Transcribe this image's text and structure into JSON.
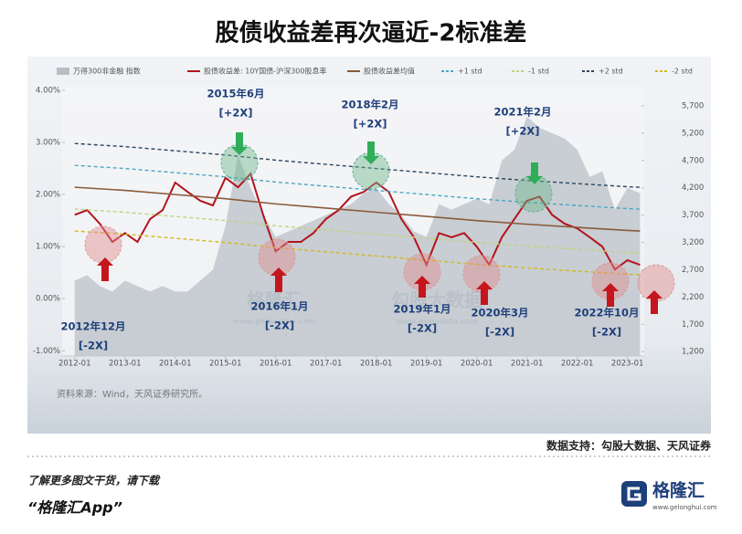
{
  "page_title": "股债收益差再次逼近-2标准差",
  "chart_data": {
    "type": "line",
    "xlim": [
      "2011-10",
      "2023-05"
    ],
    "xticks": [
      "2012-01",
      "2013-01",
      "2014-01",
      "2015-01",
      "2016-01",
      "2017-01",
      "2018-01",
      "2019-01",
      "2020-01",
      "2021-01",
      "2022-01",
      "2023-01"
    ],
    "ylim": [
      -1.1,
      4.07
    ],
    "yticks": [
      {
        "value": 4,
        "label": "4.00%"
      },
      {
        "value": 3,
        "label": "3.00%"
      },
      {
        "value": 2,
        "label": "2.00%"
      },
      {
        "value": 1,
        "label": "1.00%"
      },
      {
        "value": 0,
        "label": "0.00%"
      },
      {
        "value": -1,
        "label": "-1.00%"
      }
    ],
    "y2lim": [
      1120,
      6050
    ],
    "y2ticks": [
      {
        "value": 5700,
        "label": "5,700"
      },
      {
        "value": 5200,
        "label": "5,200"
      },
      {
        "value": 4700,
        "label": "4,700"
      },
      {
        "value": 4200,
        "label": "4,200"
      },
      {
        "value": 3700,
        "label": "3,700"
      },
      {
        "value": 3200,
        "label": "3,200"
      },
      {
        "value": 2700,
        "label": "2,700"
      },
      {
        "value": 2200,
        "label": "2,200"
      },
      {
        "value": 1700,
        "label": "1,700"
      },
      {
        "value": 1200,
        "label": "1,200"
      }
    ],
    "grid": false,
    "series": [
      {
        "name": "万得300非金融 指数",
        "kind": "area",
        "axis": "y2",
        "color": "#b7bec5",
        "x": [
          "2012-01",
          "2012-04",
          "2012-07",
          "2012-10",
          "2013-01",
          "2013-04",
          "2013-07",
          "2013-10",
          "2014-01",
          "2014-04",
          "2014-07",
          "2014-10",
          "2015-01",
          "2015-04",
          "2015-07",
          "2015-10",
          "2016-01",
          "2016-04",
          "2016-07",
          "2016-10",
          "2017-01",
          "2017-04",
          "2017-07",
          "2017-10",
          "2018-01",
          "2018-04",
          "2018-07",
          "2018-10",
          "2019-01",
          "2019-04",
          "2019-07",
          "2019-10",
          "2020-01",
          "2020-04",
          "2020-07",
          "2020-10",
          "2021-01",
          "2021-04",
          "2021-07",
          "2021-10",
          "2022-01",
          "2022-04",
          "2022-07",
          "2022-10",
          "2023-01",
          "2023-04"
        ],
        "values": [
          2500,
          2600,
          2400,
          2300,
          2500,
          2400,
          2300,
          2400,
          2300,
          2300,
          2500,
          2700,
          3500,
          4800,
          4200,
          3700,
          3300,
          3400,
          3500,
          3600,
          3700,
          3800,
          3900,
          4100,
          4200,
          3900,
          3700,
          3400,
          3300,
          3900,
          3800,
          3900,
          4000,
          3900,
          4700,
          4900,
          5500,
          5300,
          5200,
          5100,
          4900,
          4400,
          4500,
          3800,
          4200,
          4100
        ]
      },
      {
        "name": "股债收益差: 10Y国债-沪深300股息率",
        "kind": "line",
        "color": "#b3141c",
        "x": [
          "2012-01",
          "2012-04",
          "2012-07",
          "2012-10",
          "2013-01",
          "2013-04",
          "2013-07",
          "2013-10",
          "2014-01",
          "2014-04",
          "2014-07",
          "2014-10",
          "2015-01",
          "2015-04",
          "2015-07",
          "2015-10",
          "2016-01",
          "2016-04",
          "2016-07",
          "2016-10",
          "2017-01",
          "2017-04",
          "2017-07",
          "2017-10",
          "2018-01",
          "2018-04",
          "2018-07",
          "2018-10",
          "2019-01",
          "2019-04",
          "2019-07",
          "2019-10",
          "2020-01",
          "2020-04",
          "2020-07",
          "2020-10",
          "2021-01",
          "2021-04",
          "2021-07",
          "2021-10",
          "2022-01",
          "2022-04",
          "2022-07",
          "2022-10",
          "2023-01",
          "2023-04"
        ],
        "values": [
          1.61,
          1.7,
          1.44,
          1.09,
          1.26,
          1.09,
          1.53,
          1.7,
          2.23,
          2.05,
          1.88,
          1.79,
          2.32,
          2.14,
          2.4,
          1.61,
          0.91,
          1.09,
          1.09,
          1.26,
          1.53,
          1.7,
          1.96,
          2.05,
          2.23,
          2.05,
          1.53,
          1.18,
          0.65,
          1.26,
          1.18,
          1.26,
          1.0,
          0.65,
          1.18,
          1.53,
          1.88,
          1.96,
          1.61,
          1.44,
          1.35,
          1.18,
          1.0,
          0.56,
          0.74,
          0.65
        ]
      },
      {
        "name": "股债收益差均值",
        "kind": "line",
        "color": "#8a5a3a",
        "x": [
          "2012-01",
          "2013-01",
          "2014-01",
          "2015-01",
          "2016-01",
          "2017-01",
          "2018-01",
          "2019-01",
          "2020-01",
          "2021-01",
          "2022-01",
          "2023-01",
          "2023-04"
        ],
        "values": [
          2.14,
          2.08,
          2.0,
          1.92,
          1.82,
          1.74,
          1.66,
          1.58,
          1.5,
          1.43,
          1.37,
          1.31,
          1.3
        ]
      },
      {
        "name": "+1 std",
        "kind": "line",
        "dash": true,
        "color": "#49a6c0",
        "x": [
          "2012-01",
          "2013-01",
          "2014-01",
          "2015-01",
          "2016-01",
          "2017-01",
          "2018-01",
          "2019-01",
          "2020-01",
          "2021-01",
          "2022-01",
          "2023-01",
          "2023-04"
        ],
        "values": [
          2.56,
          2.5,
          2.42,
          2.34,
          2.24,
          2.16,
          2.08,
          2.0,
          1.92,
          1.85,
          1.79,
          1.73,
          1.72
        ]
      },
      {
        "name": "-1 std",
        "kind": "line",
        "dash": true,
        "color": "#c2d27f",
        "x": [
          "2012-01",
          "2013-01",
          "2014-01",
          "2015-01",
          "2016-01",
          "2017-01",
          "2018-01",
          "2019-01",
          "2020-01",
          "2021-01",
          "2022-01",
          "2023-01",
          "2023-04"
        ],
        "values": [
          1.72,
          1.66,
          1.58,
          1.5,
          1.4,
          1.32,
          1.24,
          1.16,
          1.08,
          1.01,
          0.95,
          0.89,
          0.88
        ]
      },
      {
        "name": "+2 std",
        "kind": "line",
        "dash": true,
        "color": "#2b4660",
        "x": [
          "2012-01",
          "2013-01",
          "2014-01",
          "2015-01",
          "2016-01",
          "2017-01",
          "2018-01",
          "2019-01",
          "2020-01",
          "2021-01",
          "2022-01",
          "2023-01",
          "2023-04"
        ],
        "values": [
          2.98,
          2.92,
          2.84,
          2.76,
          2.66,
          2.58,
          2.5,
          2.42,
          2.34,
          2.27,
          2.21,
          2.15,
          2.14
        ]
      },
      {
        "name": "-2 std",
        "kind": "line",
        "dash": true,
        "color": "#d2b91e",
        "x": [
          "2012-01",
          "2013-01",
          "2014-01",
          "2015-01",
          "2016-01",
          "2017-01",
          "2018-01",
          "2019-01",
          "2020-01",
          "2021-01",
          "2022-01",
          "2023-01",
          "2023-04"
        ],
        "values": [
          1.3,
          1.24,
          1.16,
          1.08,
          0.98,
          0.9,
          0.82,
          0.74,
          0.66,
          0.59,
          0.53,
          0.47,
          0.46
        ]
      }
    ],
    "annotations": [
      {
        "date": "2015年6月",
        "label": "[+2X]"
      },
      {
        "date": "2018年2月",
        "label": "[+2X]"
      },
      {
        "date": "2021年2月",
        "label": "[+2X]"
      },
      {
        "date": "2012年12月",
        "label": "[-2X]"
      },
      {
        "date": "2016年1月",
        "label": "[-2X]"
      },
      {
        "date": "2019年1月",
        "label": "[-2X]"
      },
      {
        "date": "2020年3月",
        "label": "[-2X]"
      },
      {
        "date": "2022年10月",
        "label": "[-2X]"
      }
    ],
    "watermarks": [
      "格隆汇",
      "www.gelonghui.com",
      "勾股大数据",
      "www.gugudata.com"
    ],
    "source": "资料来源：Wind，天风证券研究所。"
  },
  "credit": "数据支持：勾股大数据、天风证券",
  "footer": {
    "line1": "了解更多图文干货，请下载",
    "line2": "“格隆汇App”",
    "logo": "格隆汇",
    "logo_url": "www.gelonghui.com"
  }
}
